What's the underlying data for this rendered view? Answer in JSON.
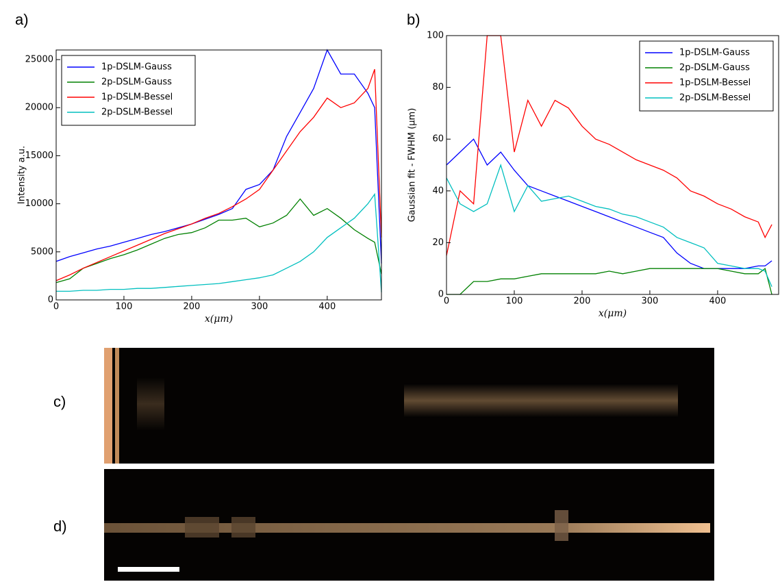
{
  "panel_labels": [
    "a)",
    "b)",
    "c)",
    "d)"
  ],
  "chart_data": [
    {
      "type": "line",
      "xlabel": "x(μm)",
      "ylabel": "Intensity a.u.",
      "legend": "upper left",
      "xlim": [
        0,
        480
      ],
      "xticks": [
        0,
        100,
        200,
        300,
        400
      ],
      "ylim": [
        0,
        26000
      ],
      "yticks": [
        0,
        5000,
        10000,
        15000,
        20000,
        25000
      ],
      "x": [
        0,
        20,
        40,
        60,
        80,
        100,
        120,
        140,
        160,
        180,
        200,
        220,
        240,
        260,
        280,
        300,
        320,
        340,
        360,
        380,
        400,
        420,
        440,
        460,
        470,
        480
      ],
      "series": [
        {
          "name": "1p-DSLM-Gauss",
          "color": "#0000ff",
          "values": [
            4000,
            4500,
            4900,
            5300,
            5600,
            6000,
            6400,
            6800,
            7100,
            7500,
            7900,
            8400,
            8900,
            9500,
            11500,
            12000,
            13500,
            17000,
            19500,
            22000,
            26000,
            23500,
            23500,
            21500,
            20000,
            3800
          ]
        },
        {
          "name": "2p-DSLM-Gauss",
          "color": "#008000",
          "values": [
            1800,
            2200,
            3300,
            3800,
            4300,
            4700,
            5200,
            5800,
            6400,
            6800,
            7000,
            7500,
            8300,
            8300,
            8500,
            7600,
            8000,
            8800,
            10500,
            8800,
            9500,
            8500,
            7300,
            6400,
            6000,
            2700
          ]
        },
        {
          "name": "1p-DSLM-Bessel",
          "color": "#ff0000",
          "values": [
            2000,
            2600,
            3300,
            3900,
            4500,
            5100,
            5700,
            6300,
            6900,
            7400,
            7900,
            8500,
            9000,
            9700,
            10500,
            11500,
            13500,
            15500,
            17500,
            19000,
            21000,
            20000,
            20500,
            22000,
            24000,
            6500
          ]
        },
        {
          "name": "2p-DSLM-Bessel",
          "color": "#00bfbf",
          "values": [
            900,
            900,
            1000,
            1000,
            1100,
            1100,
            1200,
            1200,
            1300,
            1400,
            1500,
            1600,
            1700,
            1900,
            2100,
            2300,
            2600,
            3300,
            4000,
            5000,
            6500,
            7500,
            8500,
            10000,
            11000,
            800
          ]
        }
      ]
    },
    {
      "type": "line",
      "xlabel": "x(μm)",
      "ylabel": "Gaussian fit - FWHM (μm)",
      "legend": "upper right",
      "xlim": [
        0,
        490
      ],
      "xticks": [
        0,
        100,
        200,
        300,
        400
      ],
      "ylim": [
        0,
        100
      ],
      "yticks": [
        0,
        20,
        40,
        60,
        80,
        100
      ],
      "x": [
        0,
        20,
        40,
        60,
        80,
        100,
        120,
        140,
        160,
        180,
        200,
        220,
        240,
        260,
        280,
        300,
        320,
        340,
        360,
        380,
        400,
        420,
        440,
        460,
        470,
        480
      ],
      "series": [
        {
          "name": "1p-DSLM-Gauss",
          "color": "#0000ff",
          "values": [
            50,
            55,
            60,
            50,
            55,
            48,
            42,
            40,
            38,
            36,
            34,
            32,
            30,
            28,
            26,
            24,
            22,
            16,
            12,
            10,
            10,
            10,
            10,
            11,
            11,
            13
          ]
        },
        {
          "name": "2p-DSLM-Gauss",
          "color": "#008000",
          "values": [
            0,
            0,
            5,
            5,
            6,
            6,
            7,
            8,
            8,
            8,
            8,
            8,
            9,
            8,
            9,
            10,
            10,
            10,
            10,
            10,
            10,
            9,
            8,
            8,
            10,
            0
          ]
        },
        {
          "name": "1p-DSLM-Bessel",
          "color": "#ff0000",
          "values": [
            15,
            40,
            35,
            100,
            100,
            55,
            75,
            65,
            75,
            72,
            65,
            60,
            58,
            55,
            52,
            50,
            48,
            45,
            40,
            38,
            35,
            33,
            30,
            28,
            22,
            27
          ]
        },
        {
          "name": "2p-DSLM-Bessel",
          "color": "#00bfbf",
          "values": [
            45,
            35,
            32,
            35,
            50,
            32,
            42,
            36,
            37,
            38,
            36,
            34,
            33,
            31,
            30,
            28,
            26,
            22,
            20,
            18,
            12,
            11,
            10,
            10,
            9,
            3
          ]
        }
      ]
    }
  ]
}
